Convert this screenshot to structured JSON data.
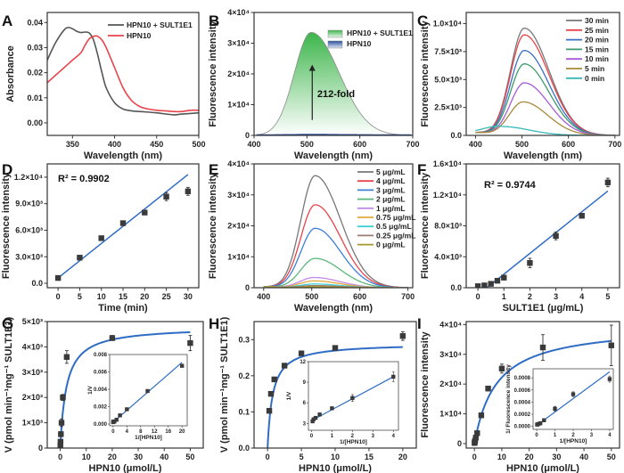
{
  "figure": {
    "panel_letters": [
      "A",
      "B",
      "C",
      "D",
      "E",
      "F",
      "G",
      "H",
      "I"
    ]
  },
  "chart_data": [
    {
      "id": "A",
      "type": "line",
      "xlabel": "Wavelength (nm)",
      "ylabel": "Absorbance",
      "xlim": [
        320,
        500
      ],
      "ylim": [
        -0.005,
        0.044
      ],
      "xticks": [
        350,
        400,
        450,
        500
      ],
      "xtick_labels": [
        "350",
        "400",
        "450",
        "500"
      ],
      "yticks": [
        0.0,
        0.01,
        0.02,
        0.03,
        0.04
      ],
      "ytick_labels": [
        "0.00",
        "0.01",
        "0.02",
        "0.03",
        "0.04"
      ],
      "legend": "top-right",
      "series": [
        {
          "name": "HPN10 + SULT1E1",
          "color": "#555555",
          "x": [
            320,
            330,
            340,
            345,
            350,
            355,
            360,
            365,
            370,
            375,
            380,
            385,
            390,
            400,
            410,
            420,
            430,
            450,
            470,
            480,
            500
          ],
          "y": [
            0.025,
            0.032,
            0.037,
            0.038,
            0.0375,
            0.0365,
            0.036,
            0.0362,
            0.0358,
            0.033,
            0.027,
            0.02,
            0.014,
            0.008,
            0.0055,
            0.0048,
            0.0045,
            0.004,
            0.0032,
            0.0035,
            0.004
          ]
        },
        {
          "name": "HPN10",
          "color": "#e8434a",
          "x": [
            320,
            330,
            340,
            350,
            360,
            365,
            370,
            375,
            380,
            385,
            390,
            400,
            410,
            420,
            430,
            440,
            450,
            460,
            470,
            480,
            490,
            500
          ],
          "y": [
            0.016,
            0.019,
            0.022,
            0.025,
            0.028,
            0.031,
            0.0335,
            0.0345,
            0.0345,
            0.033,
            0.03,
            0.022,
            0.014,
            0.009,
            0.0065,
            0.0055,
            0.005,
            0.0048,
            0.0045,
            0.0045,
            0.005,
            0.005
          ]
        }
      ]
    },
    {
      "id": "B",
      "type": "area",
      "xlabel": "Wavelength (nm)",
      "ylabel": "Fluorescence intensity",
      "xlim": [
        400,
        700
      ],
      "ylim": [
        0,
        40000
      ],
      "xticks": [
        400,
        500,
        600,
        700
      ],
      "xtick_labels": [
        "400",
        "500",
        "600",
        "700"
      ],
      "yticks": [
        0,
        10000,
        20000,
        30000,
        40000
      ],
      "ytick_labels": [
        "0",
        "1×10⁴",
        "2×10⁴",
        "3×10⁴",
        "4×10⁴"
      ],
      "legend": "top-right",
      "annotation": "212-fold",
      "series": [
        {
          "name": "HPN10 + SULT1E1",
          "color": "#3cb54a",
          "peak_x": 508,
          "peak_y": 33500
        },
        {
          "name": "HPN10",
          "color": "#2a4f9b",
          "peak_x": 508,
          "peak_y": 158
        }
      ]
    },
    {
      "id": "C",
      "type": "line",
      "xlabel": "Wavelength (nm)",
      "ylabel": "Fluorescence intensity",
      "xlim": [
        380,
        710
      ],
      "ylim": [
        0,
        11000
      ],
      "xticks": [
        400,
        500,
        600,
        700
      ],
      "xtick_labels": [
        "400",
        "500",
        "600",
        "700"
      ],
      "yticks": [
        0,
        2500,
        5000,
        7500,
        10000
      ],
      "ytick_labels": [
        "0.0",
        "2.5×10³",
        "5.0×10³",
        "7.5×10³",
        "1.0×10⁴"
      ],
      "legend": "top-right",
      "series": [
        {
          "name": "30 min",
          "color": "#777777",
          "peak_x": 505,
          "peak_y": 9600
        },
        {
          "name": "25 min",
          "color": "#e8434a",
          "peak_x": 505,
          "peak_y": 9000
        },
        {
          "name": "20 min",
          "color": "#3b6fc8",
          "peak_x": 505,
          "peak_y": 7600
        },
        {
          "name": "15 min",
          "color": "#3e9a6a",
          "peak_x": 505,
          "peak_y": 6400
        },
        {
          "name": "10 min",
          "color": "#a55ad6",
          "peak_x": 505,
          "peak_y": 4700
        },
        {
          "name": "5 min",
          "color": "#a8893a",
          "peak_x": 502,
          "peak_y": 3000
        },
        {
          "name": "0 min",
          "color": "#35b8b8",
          "peak_x": 455,
          "peak_y": 800
        }
      ]
    },
    {
      "id": "D",
      "type": "scatter",
      "xlabel": "Time (min)",
      "ylabel": "Fluorescence intensity",
      "xlim": [
        -2.5,
        32.5
      ],
      "ylim": [
        -500,
        13500
      ],
      "xticks": [
        0,
        5,
        10,
        15,
        20,
        25,
        30
      ],
      "xtick_labels": [
        "0",
        "5",
        "10",
        "15",
        "20",
        "25",
        "30"
      ],
      "yticks": [
        0,
        3000,
        6000,
        9000,
        12000
      ],
      "ytick_labels": [
        "0.0",
        "3.0×10³",
        "6.0×10³",
        "9.0×10³",
        "1.2×10⁴"
      ],
      "annotation": "R² = 0.9902",
      "points": {
        "x": [
          0,
          5,
          10,
          15,
          20,
          25,
          30
        ],
        "y": [
          600,
          2900,
          5100,
          6800,
          8000,
          9800,
          10400
        ],
        "err": [
          150,
          200,
          250,
          200,
          250,
          450,
          450
        ]
      },
      "fit": {
        "x": [
          0,
          30
        ],
        "y": [
          600,
          12300
        ],
        "color": "#2f6cc4"
      }
    },
    {
      "id": "E",
      "type": "line",
      "xlabel": "Wavelength (nm)",
      "ylabel": "Fluorescence intensity",
      "xlim": [
        380,
        710
      ],
      "ylim": [
        0,
        40000
      ],
      "xticks": [
        400,
        500,
        600,
        700
      ],
      "xtick_labels": [
        "400",
        "500",
        "600",
        "700"
      ],
      "yticks": [
        0,
        10000,
        20000,
        30000,
        40000
      ],
      "ytick_labels": [
        "0",
        "1×10⁴",
        "2×10⁴",
        "3×10⁴",
        "4×10⁴"
      ],
      "legend": "top-right",
      "series": [
        {
          "name": "5 μg/mL",
          "color": "#777777",
          "peak_x": 507,
          "peak_y": 36200
        },
        {
          "name": "4 μg/mL",
          "color": "#e8434a",
          "peak_x": 507,
          "peak_y": 26800
        },
        {
          "name": "3 μg/mL",
          "color": "#3b7fd8",
          "peak_x": 507,
          "peak_y": 19200
        },
        {
          "name": "2 μg/mL",
          "color": "#5bb87a",
          "peak_x": 507,
          "peak_y": 9500
        },
        {
          "name": "1 μg/mL",
          "color": "#c28ae8",
          "peak_x": 505,
          "peak_y": 3300
        },
        {
          "name": "0.75 μg/mL",
          "color": "#e3a93b",
          "peak_x": 505,
          "peak_y": 2200
        },
        {
          "name": "0.5 μg/mL",
          "color": "#3fd0d6",
          "peak_x": 505,
          "peak_y": 1200
        },
        {
          "name": "0.25 μg/mL",
          "color": "#a07a70",
          "peak_x": 505,
          "peak_y": 700
        },
        {
          "name": "0 μg/mL",
          "color": "#a8962e",
          "peak_x": 505,
          "peak_y": 350
        }
      ]
    },
    {
      "id": "F",
      "type": "scatter",
      "xlabel": "SULT1E1 (μg/mL)",
      "ylabel": "Fluorescence intensity",
      "xlim": [
        -0.45,
        5.45
      ],
      "ylim": [
        0,
        16000
      ],
      "xticks": [
        0,
        1,
        2,
        3,
        4,
        5
      ],
      "xtick_labels": [
        "0",
        "1",
        "2",
        "3",
        "4",
        "5"
      ],
      "yticks": [
        0,
        4000,
        8000,
        12000,
        16000
      ],
      "ytick_labels": [
        "0.0",
        "4.0×10³",
        "8.0×10³",
        "1.2×10⁴",
        "1.6×10⁴"
      ],
      "annotation": "R² = 0.9744",
      "points": {
        "x": [
          0,
          0.25,
          0.5,
          0.75,
          1,
          2,
          3,
          4,
          5
        ],
        "y": [
          200,
          300,
          500,
          900,
          1300,
          3200,
          6700,
          9300,
          13600
        ],
        "err": [
          100,
          100,
          100,
          150,
          200,
          600,
          500,
          300,
          550
        ]
      },
      "fit": {
        "x": [
          0.35,
          5
        ],
        "y": [
          0,
          12500
        ],
        "color": "#2f6cc4"
      }
    },
    {
      "id": "G",
      "type": "scatter",
      "xlabel": "HPN10 (μmol/L)",
      "ylabel": "V (pmol min⁻¹mg⁻¹ SULT1E1)",
      "xlim": [
        -5,
        55
      ],
      "ylim": [
        0,
        5000
      ],
      "xticks": [
        0,
        10,
        20,
        30,
        40,
        50
      ],
      "xtick_labels": [
        "0",
        "10",
        "20",
        "30",
        "40",
        "50"
      ],
      "yticks": [
        0,
        1000,
        2000,
        3000,
        4000,
        5000
      ],
      "ytick_labels": [
        "0",
        "1×10³",
        "2×10³",
        "3×10³",
        "4×10³",
        "5×10³"
      ],
      "points": {
        "x": [
          0.05,
          0.1,
          0.25,
          0.5,
          1,
          2.5,
          20,
          50
        ],
        "y": [
          100,
          250,
          550,
          1000,
          2000,
          3600,
          4350,
          4150
        ],
        "err": [
          80,
          80,
          100,
          150,
          120,
          250,
          100,
          300
        ]
      },
      "fit": {
        "type": "michaelis-menten",
        "vmax": 4800,
        "km": 2.4,
        "x0": 0,
        "x1": 50,
        "color": "#2f6cc4"
      },
      "inset": {
        "xlabel": "1/[HPN10]",
        "ylabel": "1/V",
        "xlim": [
          -1,
          21.5
        ],
        "ylim": [
          -0.0002,
          0.008
        ],
        "xticks": [
          0,
          4,
          8,
          12,
          16,
          20
        ],
        "xtick_labels": [
          "0",
          "4",
          "8",
          "12",
          "16",
          "20"
        ],
        "yticks": [
          0,
          0.002,
          0.004,
          0.006,
          0.008
        ],
        "ytick_labels": [
          "0.000",
          "0.002",
          "0.004",
          "0.006",
          "0.008"
        ],
        "points": {
          "x": [
            0.02,
            0.05,
            0.4,
            1,
            2,
            4,
            10,
            20
          ],
          "y": [
            0.00022,
            0.00028,
            0.0003,
            0.0005,
            0.001,
            0.0017,
            0.0038,
            0.0067
          ],
          "err": [
            5e-05,
            5e-05,
            5e-05,
            8e-05,
            0.0001,
            0.0001,
            0.0001,
            0.00015
          ]
        },
        "fit": {
          "x": [
            0,
            20
          ],
          "y": [
            0.0002,
            0.0071
          ]
        }
      }
    },
    {
      "id": "H",
      "type": "scatter",
      "xlabel": "HPN10 (μmol/L)",
      "ylabel": "V (pmol min⁻¹mg⁻¹ SULT1E1)",
      "xlim": [
        -2,
        22
      ],
      "ylim": [
        0,
        0.35
      ],
      "xticks": [
        0,
        5,
        10,
        15,
        20
      ],
      "xtick_labels": [
        "0",
        "5",
        "10",
        "15",
        "20"
      ],
      "yticks": [
        0,
        0.1,
        0.2,
        0.3
      ],
      "ytick_labels": [
        "0.0",
        "0.1",
        "0.2",
        "0.3"
      ],
      "points": {
        "x": [
          0.25,
          0.5,
          1,
          2.5,
          5,
          10,
          20
        ],
        "y": [
          0.103,
          0.15,
          0.19,
          0.228,
          0.262,
          0.277,
          0.31
        ],
        "err": [
          0.005,
          0.006,
          0.005,
          0.005,
          0.004,
          0.004,
          0.012
        ]
      },
      "fit": {
        "type": "michaelis-menten",
        "vmax": 0.29,
        "km": 0.75,
        "x0": 0,
        "x1": 20,
        "color": "#2f6cc4"
      },
      "inset": {
        "xlabel": "1/[HPN10]",
        "ylabel": "1/V",
        "xlim": [
          -0.15,
          4.25
        ],
        "ylim": [
          2,
          12
        ],
        "xticks": [
          0,
          1,
          2,
          3,
          4
        ],
        "xtick_labels": [
          "0",
          "1",
          "2",
          "3",
          "4"
        ],
        "yticks": [
          3,
          6,
          9,
          12
        ],
        "ytick_labels": [
          "3",
          "6",
          "9",
          "12"
        ],
        "points": {
          "x": [
            0.05,
            0.1,
            0.2,
            0.4,
            1,
            2,
            4
          ],
          "y": [
            3.3,
            3.6,
            3.8,
            4.3,
            5.2,
            6.7,
            9.8
          ],
          "err": [
            0.2,
            0.2,
            0.2,
            0.2,
            0.2,
            0.5,
            0.7
          ]
        },
        "fit": {
          "x": [
            0,
            4
          ],
          "y": [
            3.4,
            9.8
          ]
        }
      }
    },
    {
      "id": "I",
      "type": "scatter",
      "xlabel": "HPN10 (μmol/L)",
      "ylabel": "Fluorescence intensity",
      "xlim": [
        -3,
        53
      ],
      "ylim": [
        -1500,
        41000
      ],
      "xticks": [
        0,
        10,
        20,
        30,
        40,
        50
      ],
      "xtick_labels": [
        "0",
        "10",
        "20",
        "30",
        "40",
        "50"
      ],
      "yticks": [
        0,
        10000,
        20000,
        30000,
        40000
      ],
      "ytick_labels": [
        "0",
        "1×10⁴",
        "2×10⁴",
        "3×10⁴",
        "4×10⁴"
      ],
      "points": {
        "x": [
          0.05,
          0.1,
          0.25,
          0.5,
          1,
          2.5,
          5,
          10,
          25,
          50
        ],
        "y": [
          200,
          500,
          1000,
          2000,
          3500,
          9500,
          18500,
          25200,
          32300,
          33000
        ],
        "err": [
          200,
          200,
          300,
          500,
          600,
          500,
          800,
          1500,
          4300,
          6800
        ]
      },
      "fit": {
        "type": "michaelis-menten",
        "vmax": 40000,
        "km": 8,
        "x0": 0,
        "x1": 50,
        "color": "#2f6cc4"
      },
      "inset": {
        "xlabel": "1/[HPN10]",
        "ylabel": "1/ Fluorescence intensity",
        "xlim": [
          -0.2,
          4.2
        ],
        "ylim": [
          -5e-05,
          0.00095
        ],
        "xticks": [
          0,
          1,
          2,
          3,
          4
        ],
        "xtick_labels": [
          "0",
          "1",
          "2",
          "3",
          "4"
        ],
        "yticks": [
          0,
          0.0002,
          0.0004,
          0.0006,
          0.0008
        ],
        "ytick_labels": [
          "0.0000",
          "0.0002",
          "0.0004",
          "0.0006",
          "0.0008"
        ],
        "points": {
          "x": [
            0.02,
            0.04,
            0.1,
            0.2,
            0.4,
            1,
            2,
            4
          ],
          "y": [
            3e-05,
            3e-05,
            4e-05,
            5e-05,
            0.0001,
            0.00029,
            0.00053,
            0.00078
          ],
          "err": [
            5e-06,
            5e-06,
            5e-06,
            1e-05,
            1e-05,
            4e-05,
            4e-05,
            5e-05
          ]
        },
        "fit": {
          "x": [
            0.02,
            4
          ],
          "y": [
            2e-05,
            0.0009
          ]
        }
      }
    }
  ]
}
